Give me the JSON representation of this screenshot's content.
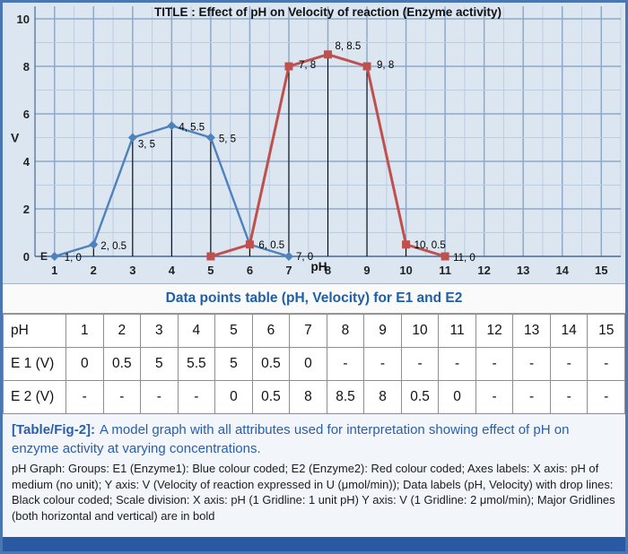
{
  "chart_data": {
    "type": "line",
    "title": "TITLE : Effect of pH on Velocity of reaction (Enzyme activity)",
    "xlabel": "pH",
    "ylabel": "V",
    "origin_label": "E",
    "x_ticks": [
      "1",
      "2",
      "3",
      "4",
      "5",
      "6",
      "7",
      "8",
      "9",
      "10",
      "11",
      "12",
      "13",
      "14",
      "15"
    ],
    "y_ticks": [
      0,
      2,
      4,
      6,
      8,
      10
    ],
    "xlim": [
      0.5,
      15.5
    ],
    "ylim": [
      0,
      10
    ],
    "grid": {
      "x_minor_every": 0.5,
      "x_major_every": 1,
      "y_minor_every": 1,
      "y_major_every": 2,
      "major_bold": true
    },
    "drop_lines": true,
    "series": [
      {
        "name": "E1 (Enzyme1)",
        "color": "#4f81bd",
        "marker": "diamond",
        "line_width": 2.4,
        "points": [
          [
            1,
            0
          ],
          [
            2,
            0.5
          ],
          [
            3,
            5
          ],
          [
            4,
            5.5
          ],
          [
            5,
            5
          ],
          [
            6,
            0.5
          ],
          [
            7,
            0
          ]
        ],
        "labels": [
          "1, 0",
          "2, 0.5",
          "3, 5",
          "4, 5.5",
          "5, 5",
          "6, 0.5",
          "7, 0"
        ],
        "label_offsets": [
          [
            11,
            5
          ],
          [
            8,
            5
          ],
          [
            6,
            11
          ],
          [
            8,
            5
          ],
          [
            9,
            5
          ],
          [
            10,
            4
          ],
          [
            8,
            4
          ]
        ]
      },
      {
        "name": "E2 (Enzyme2)",
        "color": "#c0504d",
        "marker": "square",
        "line_width": 3,
        "points": [
          [
            5,
            0
          ],
          [
            6,
            0.5
          ],
          [
            7,
            8
          ],
          [
            8,
            8.5
          ],
          [
            9,
            8
          ],
          [
            10,
            0.5
          ],
          [
            11,
            0
          ]
        ],
        "labels": [
          "",
          "",
          "7, 8",
          "8, 8.5",
          "9, 8",
          "10, 0.5",
          "11, 0"
        ],
        "label_offsets": [
          [
            0,
            0
          ],
          [
            0,
            0
          ],
          [
            11,
            2
          ],
          [
            8,
            -6
          ],
          [
            11,
            2
          ],
          [
            9,
            4
          ],
          [
            9,
            5
          ]
        ]
      }
    ]
  },
  "table": {
    "title": "Data points table (pH, Velocity) for E1 and E2",
    "rows": [
      {
        "label": "pH",
        "values": [
          "1",
          "2",
          "3",
          "4",
          "5",
          "6",
          "7",
          "8",
          "9",
          "10",
          "11",
          "12",
          "13",
          "14",
          "15"
        ]
      },
      {
        "label": "E 1 (V)",
        "values": [
          "0",
          "0.5",
          "5",
          "5.5",
          "5",
          "0.5",
          "0",
          "-",
          "-",
          "-",
          "-",
          "-",
          "-",
          "-",
          "-"
        ]
      },
      {
        "label": "E 2 (V)",
        "values": [
          "-",
          "-",
          "-",
          "-",
          "0",
          "0.5",
          "8",
          "8.5",
          "8",
          "0.5",
          "0",
          "-",
          "-",
          "-",
          "-"
        ]
      }
    ]
  },
  "caption": {
    "tag": "[Table/Fig-2]:",
    "text": "A model graph with all attributes used for interpretation showing effect of pH on enzyme activity at varying concentrations.",
    "detail": "pH Graph: Groups: E1 (Enzyme1): Blue colour coded; E2 (Enzyme2): Red colour coded; Axes labels: X axis: pH of medium (no unit); Y axis: V (Velocity of reaction expressed in U (μmol/min)); Data labels (pH, Velocity) with drop lines: Black colour coded; Scale division: X axis: pH (1 Gridline: 1 unit pH) Y axis: V (1 Gridline: 2 μmol/min); Major Gridlines (both horizontal and vertical) are in bold"
  },
  "colors": {
    "frame_border": "#4a77b4",
    "chart_bg": "#dce6f1",
    "grid_minor": "#bccde2",
    "grid_major": "#8fa8c8",
    "axis": "#4a6892",
    "series_e1": "#4f81bd",
    "series_e2": "#c0504d",
    "drop_line": "#000000",
    "table_title_text": "#1e5fa8",
    "caption_text": "#2a5fa8",
    "bottom_bar": "#2a59a4"
  }
}
